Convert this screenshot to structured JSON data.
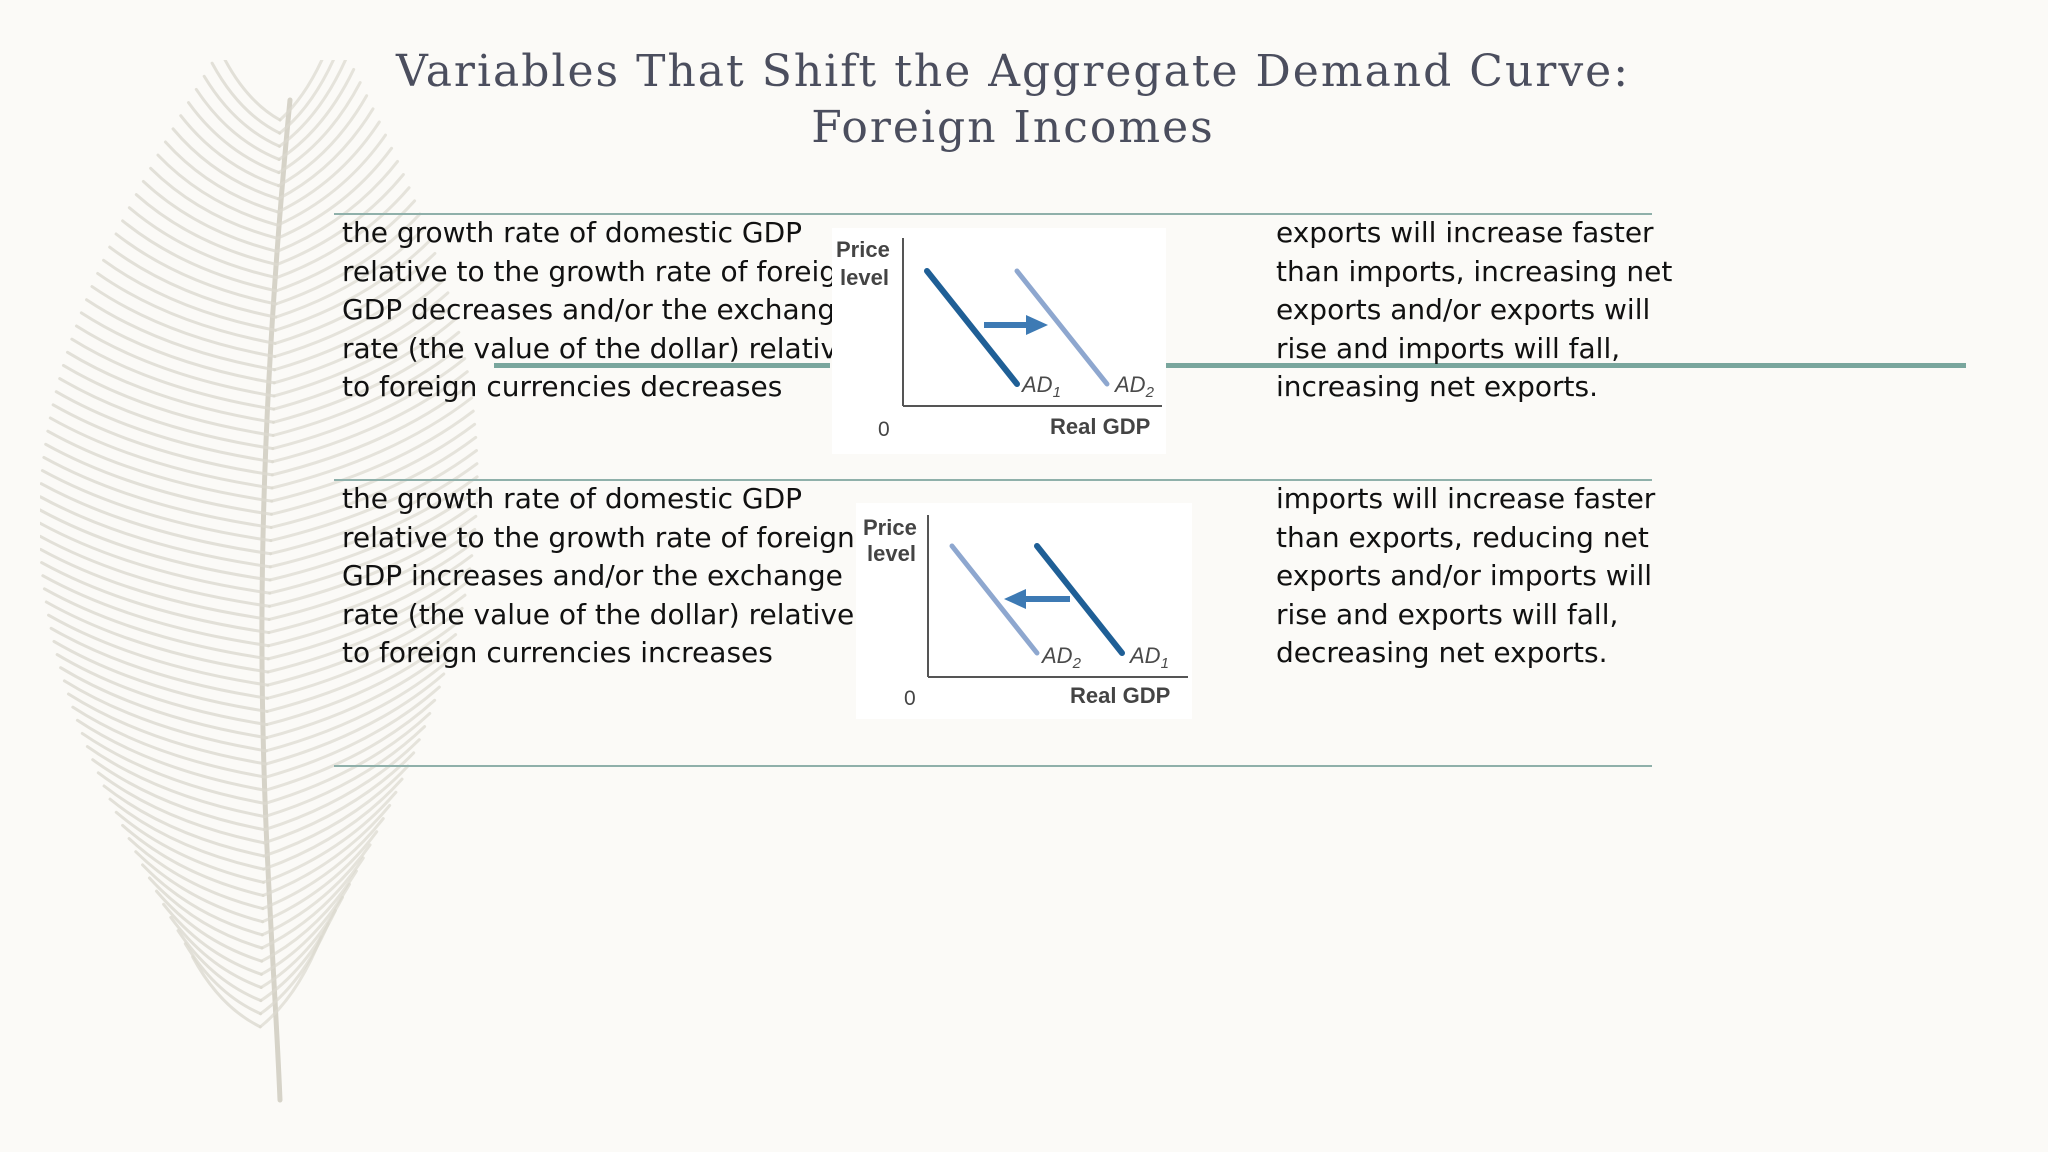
{
  "title": {
    "line1": "Variables That Shift the Aggregate Demand Curve:",
    "line2": "Foreign Incomes"
  },
  "rows": [
    {
      "condition": [
        "the growth rate of domestic GDP",
        "relative to the growth rate of foreign",
        "GDP decreases and/or the exchange",
        "rate (the value of the dollar) relative",
        "to foreign currencies decreases"
      ],
      "result": [
        "exports will increase faster",
        "than imports, increasing net",
        "exports and/or exports will",
        "rise and imports will fall,",
        "increasing net exports."
      ],
      "chart": {
        "y_label_line1": "Price",
        "y_label_line2": "level",
        "x_label": "Real GDP",
        "origin_label": "0",
        "left_curve": "AD",
        "left_sub": "1",
        "right_curve": "AD",
        "right_sub": "2",
        "shift": "right"
      }
    },
    {
      "condition": [
        "the growth rate of domestic GDP",
        "relative to the growth rate of foreign",
        "GDP increases and/or the exchange",
        "rate (the value of the dollar) relative",
        "to foreign currencies increases"
      ],
      "result": [
        "imports will increase faster",
        "than exports, reducing net",
        "exports and/or imports will",
        "rise and exports will fall,",
        "decreasing net exports."
      ],
      "chart": {
        "y_label_line1": "Price",
        "y_label_line2": "level",
        "x_label": "Real GDP",
        "origin_label": "0",
        "left_curve": "AD",
        "left_sub": "2",
        "right_curve": "AD",
        "right_sub": "1",
        "shift": "left"
      }
    }
  ],
  "colors": {
    "initial_curve": "#1f5f96",
    "new_curve": "#8ea7cf",
    "arrow": "#3d7ab4",
    "rule": "#8fb0aa",
    "accent": "#79a69d",
    "title": "#4b4e5e"
  },
  "icons": {
    "background": "feather-icon"
  }
}
